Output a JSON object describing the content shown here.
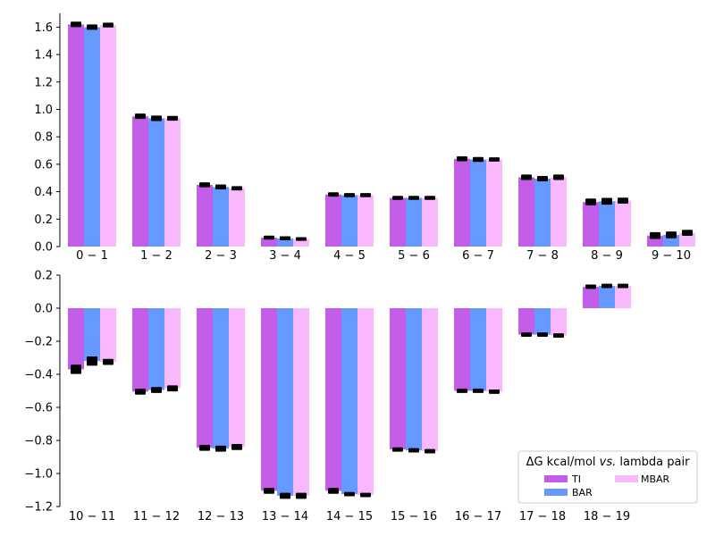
{
  "chart_data": [
    {
      "type": "bar",
      "categories": [
        "0 − 1",
        "1 − 2",
        "2 − 3",
        "3 − 4",
        "4 − 5",
        "5 − 6",
        "6 − 7",
        "7 − 8",
        "8 − 9",
        "9 − 10"
      ],
      "series": [
        {
          "name": "TI",
          "color": "#c25de8",
          "values": [
            1.62,
            0.95,
            0.45,
            0.065,
            0.38,
            0.355,
            0.64,
            0.505,
            0.325,
            0.08
          ],
          "errors": [
            0.01,
            0.01,
            0.008,
            0.005,
            0.006,
            0.005,
            0.008,
            0.01,
            0.015,
            0.015
          ]
        },
        {
          "name": "BAR",
          "color": "#6699ff",
          "values": [
            1.6,
            0.935,
            0.435,
            0.06,
            0.375,
            0.355,
            0.635,
            0.495,
            0.33,
            0.085
          ],
          "errors": [
            0.01,
            0.01,
            0.008,
            0.005,
            0.005,
            0.005,
            0.008,
            0.01,
            0.015,
            0.015
          ]
        },
        {
          "name": "MBAR",
          "color": "#f9b8fb",
          "values": [
            1.615,
            0.935,
            0.425,
            0.055,
            0.375,
            0.355,
            0.635,
            0.505,
            0.335,
            0.1
          ],
          "errors": [
            0.008,
            0.008,
            0.006,
            0.004,
            0.005,
            0.005,
            0.006,
            0.01,
            0.012,
            0.012
          ]
        }
      ],
      "ylim": [
        0.0,
        1.7
      ],
      "yticks": [
        0.0,
        0.2,
        0.4,
        0.6,
        0.8,
        1.0,
        1.2,
        1.4,
        1.6
      ]
    },
    {
      "type": "bar",
      "categories": [
        "10 − 11",
        "11 − 12",
        "12 − 13",
        "13 − 14",
        "14 − 15",
        "15 − 16",
        "16 − 17",
        "17 − 18",
        "18 − 19"
      ],
      "series": [
        {
          "name": "TI",
          "color": "#c25de8",
          "values": [
            -0.37,
            -0.505,
            -0.845,
            -1.105,
            -1.105,
            -0.855,
            -0.5,
            -0.16,
            0.13
          ],
          "errors": [
            0.02,
            0.01,
            0.01,
            0.01,
            0.01,
            0.005,
            0.005,
            0.005,
            0.005
          ]
        },
        {
          "name": "BAR",
          "color": "#6699ff",
          "values": [
            -0.32,
            -0.495,
            -0.85,
            -1.135,
            -1.125,
            -0.86,
            -0.5,
            -0.16,
            0.135
          ],
          "errors": [
            0.02,
            0.01,
            0.01,
            0.01,
            0.005,
            0.005,
            0.005,
            0.005,
            0.005
          ]
        },
        {
          "name": "MBAR",
          "color": "#f9b8fb",
          "values": [
            -0.325,
            -0.485,
            -0.84,
            -1.135,
            -1.13,
            -0.865,
            -0.505,
            -0.165,
            0.135
          ],
          "errors": [
            0.01,
            0.01,
            0.01,
            0.01,
            0.005,
            0.005,
            0.005,
            0.005,
            0.005
          ]
        }
      ],
      "ylim": [
        -1.2,
        0.2
      ],
      "yticks": [
        -1.2,
        -1.0,
        -0.8,
        -0.6,
        -0.4,
        -0.2,
        0.0,
        0.2
      ]
    }
  ],
  "legend": {
    "title": "ΔG kcal/mol vs. lambda pair",
    "placement": "lower-right",
    "entries": [
      {
        "label": "TI",
        "color": "#c25de8"
      },
      {
        "label": "BAR",
        "color": "#6699ff"
      },
      {
        "label": "MBAR",
        "color": "#f9b8fb"
      }
    ]
  }
}
